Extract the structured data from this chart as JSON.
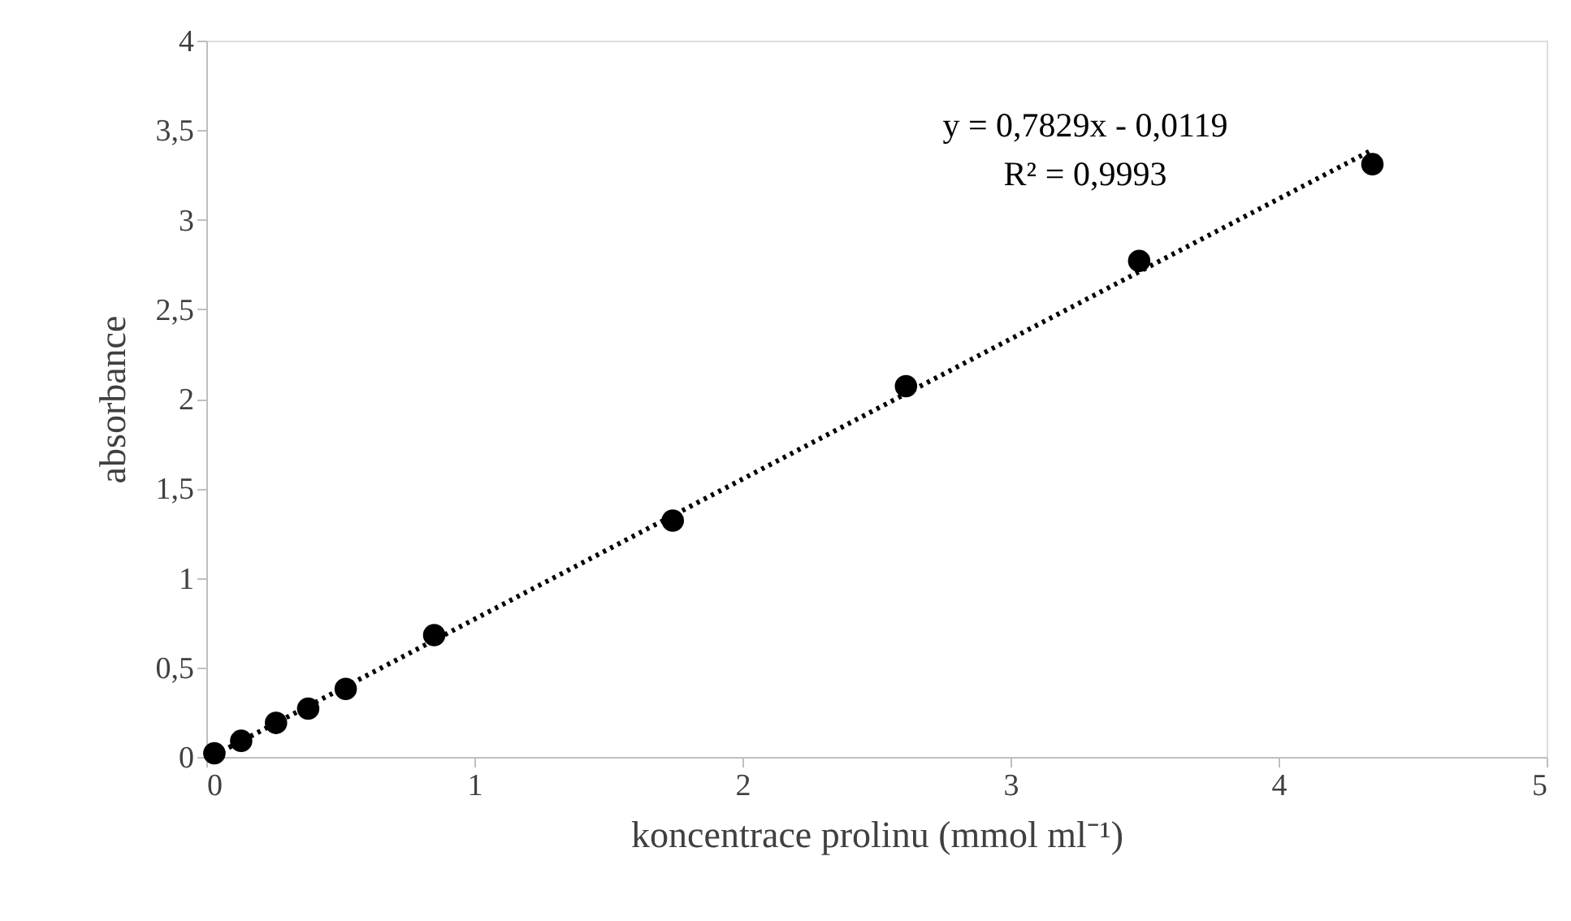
{
  "chart_data": {
    "type": "scatter",
    "xlabel": "koncentrace prolinu (mmol ml⁻¹)",
    "ylabel": "absorbance",
    "xlim": [
      0,
      5
    ],
    "xticks": [
      0,
      1,
      2,
      3,
      4,
      5
    ],
    "ylim": [
      0,
      4
    ],
    "yticks": [
      0,
      {
        "value": 0.5,
        "label": "0,5"
      },
      1,
      {
        "value": 1.5,
        "label": "1,5"
      },
      2,
      {
        "value": 2.5,
        "label": "2,5"
      },
      3,
      {
        "value": 3.5,
        "label": "3,5"
      },
      4
    ],
    "grid": false,
    "legend": false,
    "series": [
      {
        "type": "line",
        "color": "#000000",
        "line_style": "dotted",
        "marker": "none",
        "x": [
          0.03,
          4.35
        ],
        "values": [
          0.01,
          3.39
        ]
      },
      {
        "color": "#000000",
        "marker": "circle",
        "x": [
          0.03,
          0.13,
          0.26,
          0.38,
          0.52,
          0.85,
          1.74,
          2.61,
          3.48,
          4.35
        ],
        "values": [
          0.02,
          0.09,
          0.19,
          0.27,
          0.38,
          0.68,
          1.32,
          2.07,
          2.77,
          3.31
        ]
      }
    ],
    "annotations": [
      "y = 0,7829x - 0,0119",
      "R² = 0,9993"
    ]
  }
}
